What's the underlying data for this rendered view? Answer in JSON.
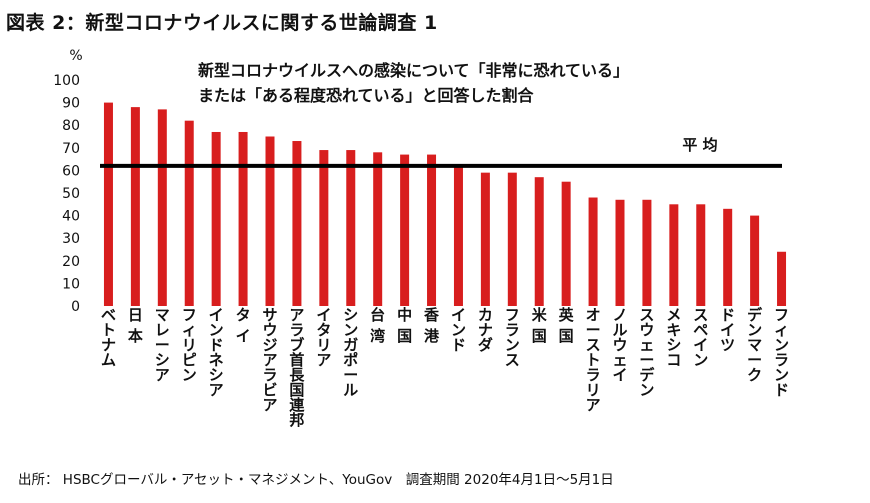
{
  "page": {
    "figure_title": "図表 2：新型コロナウイルスに関する世論調査 1",
    "subtitle_line1": "新型コロナウイルスへの感染について「非常に恐れている」",
    "subtitle_line2": "または「ある程度恐れている」と回答した割合",
    "source": "出所： HSBCグローバル・アセット・マネジメント、YouGov　調査期間 2020年4月1日～5月1日"
  },
  "chart_data": {
    "type": "bar",
    "title": "新型コロナウイルスへの感染について「非常に恐れている」または「ある程度恐れている」と回答した割合",
    "ylabel": "%",
    "xlabel": "",
    "ylim": [
      0,
      100
    ],
    "yticks": [
      0,
      10,
      20,
      30,
      40,
      50,
      60,
      70,
      80,
      90,
      100
    ],
    "grid": false,
    "bar_color": "#d81e1e",
    "categories": [
      "ベトナム",
      "日本",
      "マレーシア",
      "フィリピン",
      "インドネシア",
      "タイ",
      "サウジアラビア",
      "アラブ首長国連邦",
      "イタリア",
      "シンガポール",
      "台湾",
      "中国",
      "香港",
      "インド",
      "カナダ",
      "フランス",
      "米国",
      "英国",
      "オーストラリア",
      "ノルウェイ",
      "スウェーデン",
      "メキシコ",
      "スペイン",
      "ドイツ",
      "デンマーク",
      "フィンランド"
    ],
    "category_labels": [
      "ベトナム",
      "日 本",
      "マレーシア",
      "フィリピン",
      "インドネシア",
      "タ イ",
      "サウジアラビア",
      "アラブ首長国連邦",
      "イタリア",
      "シンガポール",
      "台 湾",
      "中 国",
      "香 港",
      "インド",
      "カナダ",
      "フランス",
      "米 国",
      "英 国",
      "オーストラリア",
      "ノルウェイ",
      "スウェーデン",
      "メキシコ",
      "スペイン",
      "ドイツ",
      "デンマーク",
      "フィンランド"
    ],
    "values": [
      90,
      88,
      87,
      82,
      77,
      77,
      75,
      73,
      69,
      69,
      68,
      67,
      67,
      62,
      59,
      59,
      57,
      55,
      48,
      47,
      47,
      45,
      45,
      43,
      40,
      24
    ],
    "average": 62,
    "average_label": "平 均",
    "average_color": "#000000"
  }
}
